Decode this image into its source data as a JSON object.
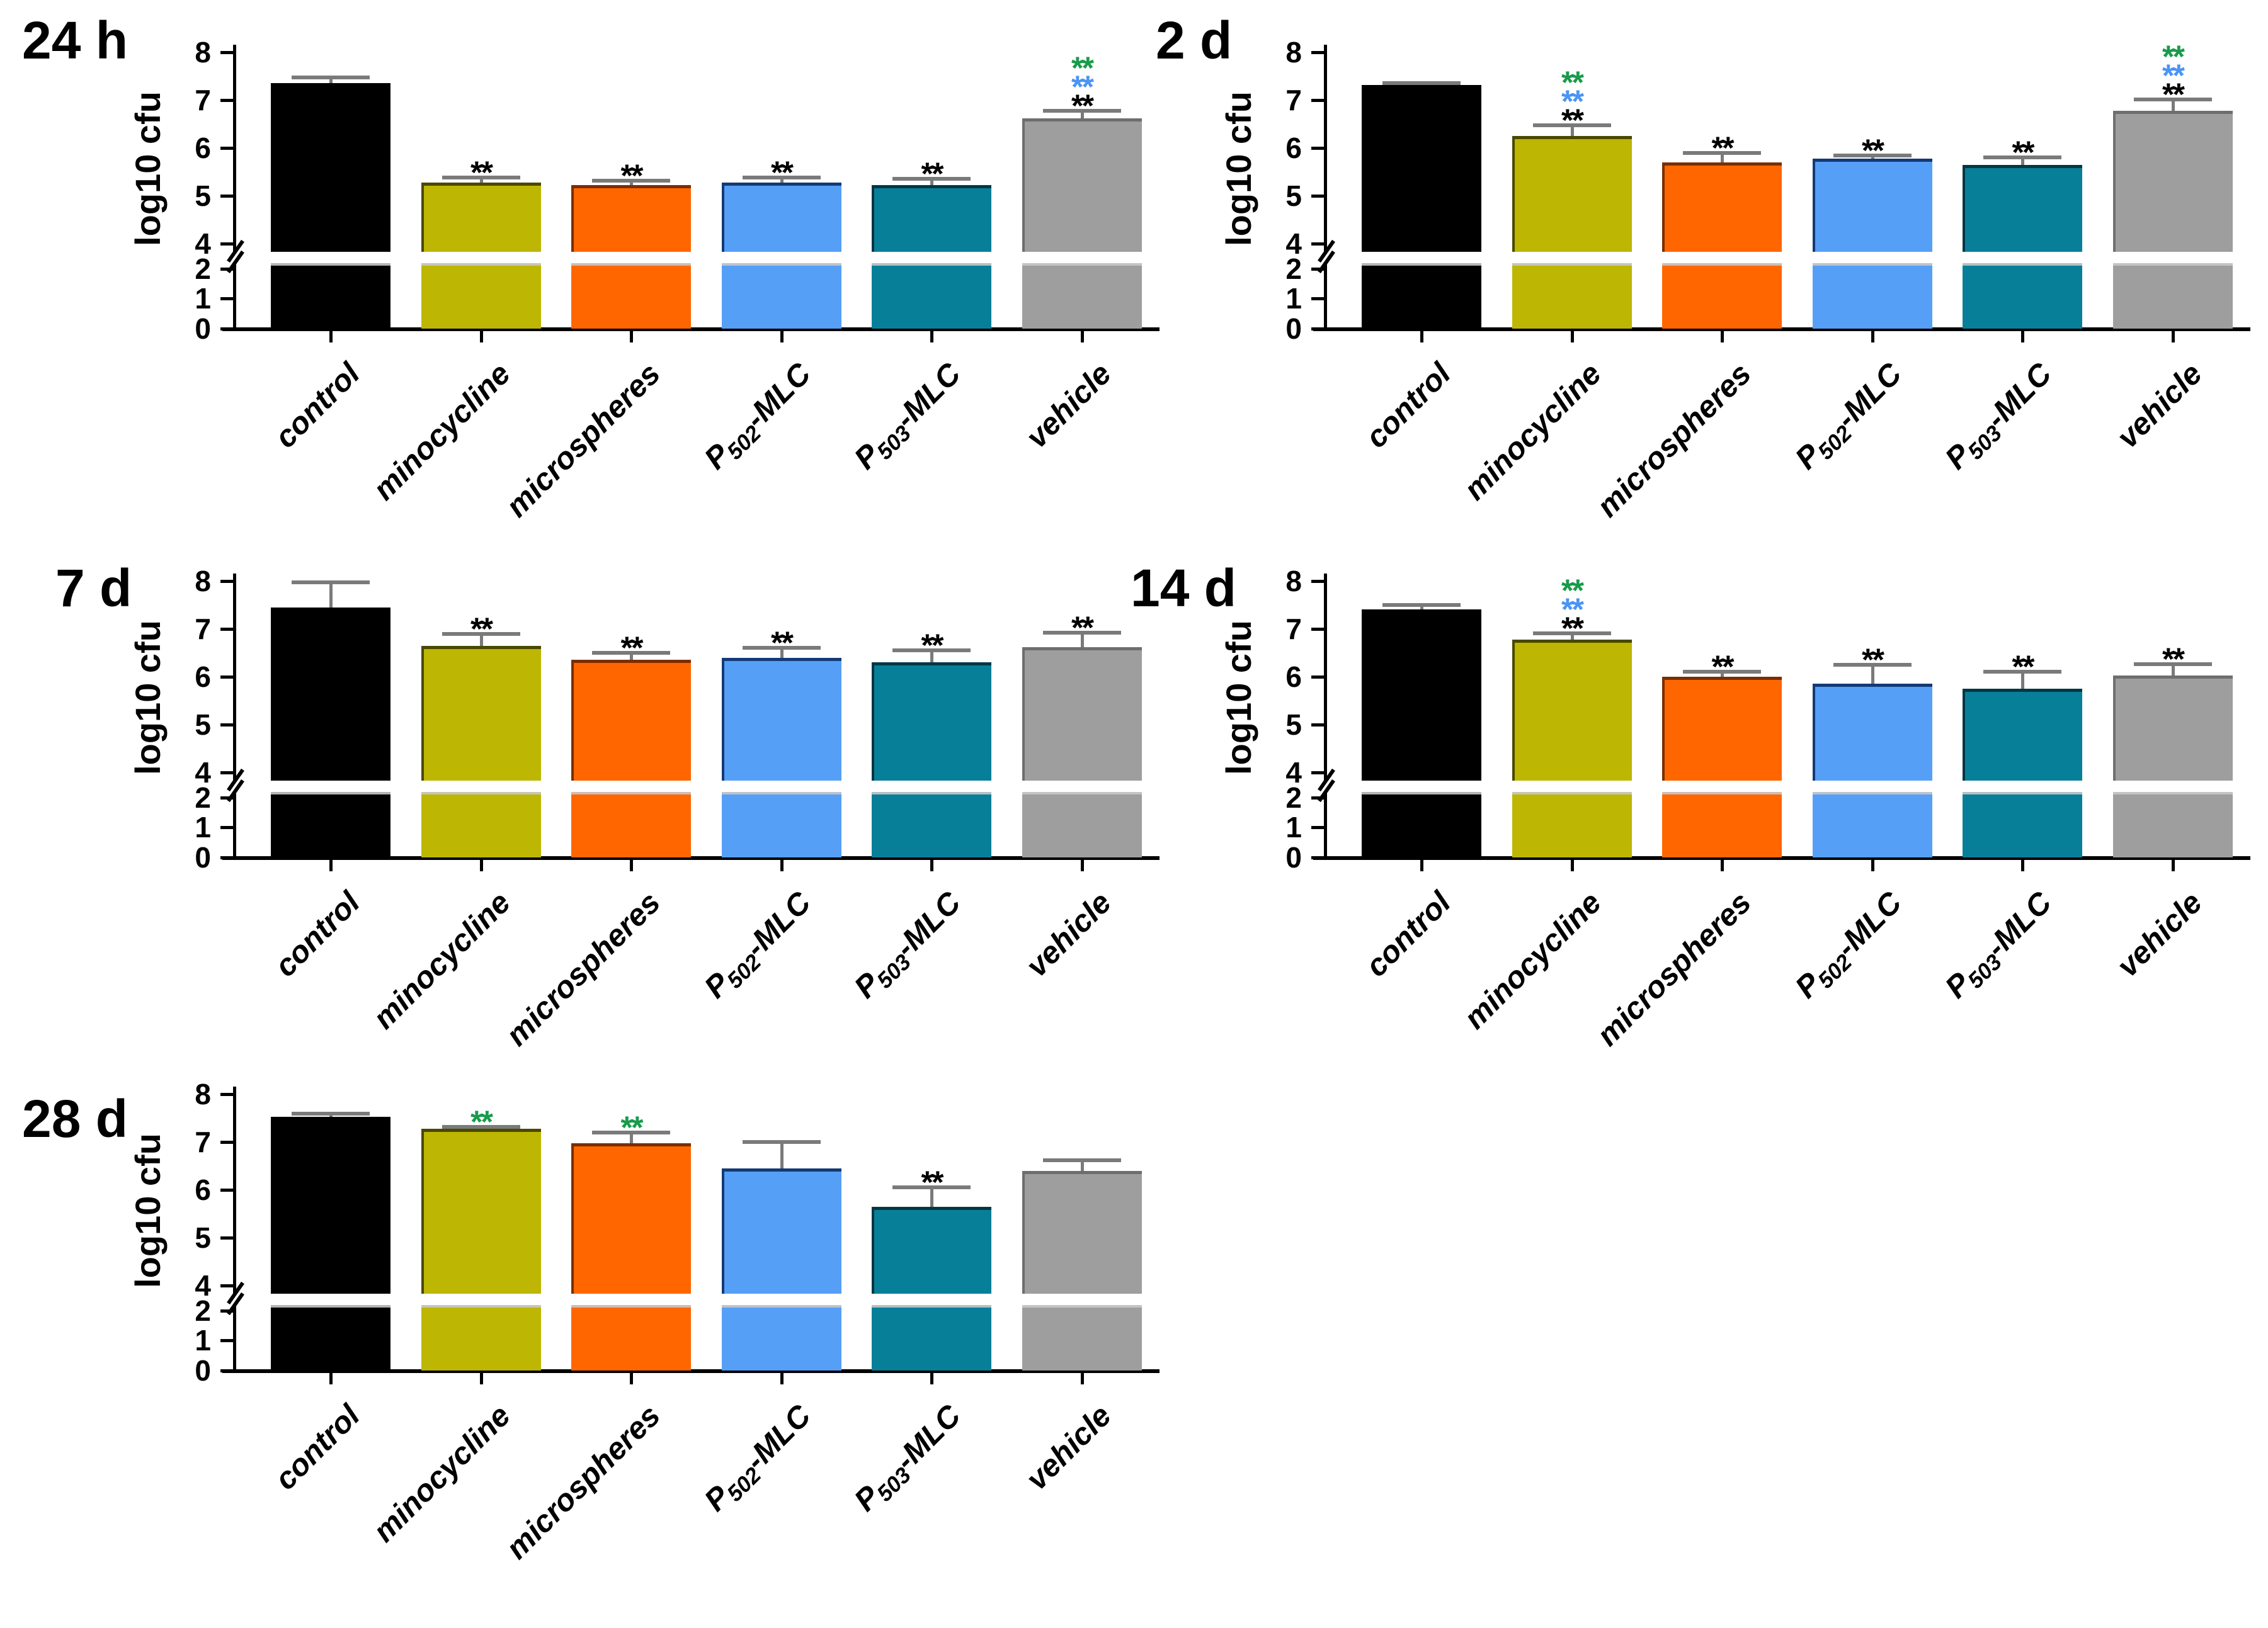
{
  "figure": {
    "background": "#ffffff",
    "y_axis_label": "log10 cfu",
    "significance_symbol": "**",
    "panel_titles": [
      "24 h",
      "2 d",
      "7 d",
      "14 d",
      "28 d"
    ]
  },
  "colors": {
    "bars": {
      "black": "#000000",
      "olive": "#BDB602",
      "orange": "#FF6600",
      "blue": "#569FF7",
      "teal": "#087F99",
      "gray": "#9E9E9E"
    },
    "bar_edges": {
      "black": "#000000",
      "olive": "#4A4800",
      "orange": "#7A2E00",
      "blue": "#123A75",
      "teal": "#033744",
      "gray": "#6E6E6E"
    },
    "significance": {
      "black": "#000000",
      "blue": "#4A94F5",
      "green": "#189B4A"
    },
    "error_bar": "#7A7A7A",
    "axis": "#000000"
  },
  "groups": [
    {
      "key": "black",
      "label": "control"
    },
    {
      "key": "olive",
      "label": "minocycline"
    },
    {
      "key": "orange",
      "label": "microspheres"
    },
    {
      "key": "blue",
      "label": "P502-MLC",
      "pre": "P",
      "sub": "502",
      "post": "-MLC"
    },
    {
      "key": "teal",
      "label": "P503-MLC",
      "pre": "P",
      "sub": "503",
      "post": "-MLC"
    },
    {
      "key": "gray",
      "label": "vehicle"
    }
  ],
  "chart_data": [
    {
      "type": "bar",
      "title": "24 h",
      "ylabel": "log10 cfu",
      "ylim": [
        0,
        8
      ],
      "axis_break": {
        "lower_max": 2,
        "upper_min": 4
      },
      "yticks_upper": [
        4,
        5,
        6,
        7,
        8
      ],
      "yticks_lower": [
        0,
        1,
        2
      ],
      "categories": [
        "control",
        "minocycline",
        "microspheres",
        "P502-MLC",
        "P503-MLC",
        "vehicle"
      ],
      "values": [
        7.35,
        5.28,
        5.22,
        5.28,
        5.22,
        6.62
      ],
      "errors": [
        0.12,
        0.1,
        0.1,
        0.1,
        0.14,
        0.16
      ],
      "significance_top_to_bottom": [
        [],
        [
          "black"
        ],
        [
          "black"
        ],
        [
          "black"
        ],
        [
          "black"
        ],
        [
          "green",
          "blue",
          "black"
        ]
      ]
    },
    {
      "type": "bar",
      "title": "2 d",
      "ylabel": "log10 cfu",
      "ylim": [
        0,
        8
      ],
      "axis_break": {
        "lower_max": 2,
        "upper_min": 4
      },
      "yticks_upper": [
        4,
        5,
        6,
        7,
        8
      ],
      "yticks_lower": [
        0,
        1,
        2
      ],
      "categories": [
        "control",
        "minocycline",
        "microspheres",
        "P502-MLC",
        "P503-MLC",
        "vehicle"
      ],
      "values": [
        7.32,
        6.25,
        5.7,
        5.77,
        5.65,
        6.77
      ],
      "errors": [
        0.04,
        0.22,
        0.2,
        0.07,
        0.15,
        0.24
      ],
      "significance_top_to_bottom": [
        [],
        [
          "green",
          "blue",
          "black"
        ],
        [
          "black"
        ],
        [
          "black"
        ],
        [
          "black"
        ],
        [
          "green",
          "blue",
          "black"
        ]
      ]
    },
    {
      "type": "bar",
      "title": "7 d",
      "ylabel": "log10 cfu",
      "ylim": [
        0,
        8
      ],
      "axis_break": {
        "lower_max": 2,
        "upper_min": 4
      },
      "yticks_upper": [
        4,
        5,
        6,
        7,
        8
      ],
      "yticks_lower": [
        0,
        1,
        2
      ],
      "categories": [
        "control",
        "minocycline",
        "microspheres",
        "P502-MLC",
        "P503-MLC",
        "vehicle"
      ],
      "values": [
        7.45,
        6.65,
        6.35,
        6.4,
        6.3,
        6.62
      ],
      "errors": [
        0.52,
        0.24,
        0.15,
        0.2,
        0.25,
        0.3
      ],
      "significance_top_to_bottom": [
        [],
        [
          "black"
        ],
        [
          "black"
        ],
        [
          "black"
        ],
        [
          "black"
        ],
        [
          "black"
        ]
      ]
    },
    {
      "type": "bar",
      "title": "14 d",
      "ylabel": "log10 cfu",
      "ylim": [
        0,
        8
      ],
      "axis_break": {
        "lower_max": 2,
        "upper_min": 4
      },
      "yticks_upper": [
        4,
        5,
        6,
        7,
        8
      ],
      "yticks_lower": [
        0,
        1,
        2
      ],
      "categories": [
        "control",
        "minocycline",
        "microspheres",
        "P502-MLC",
        "P503-MLC",
        "vehicle"
      ],
      "values": [
        7.41,
        6.78,
        6.0,
        5.85,
        5.75,
        6.02
      ],
      "errors": [
        0.09,
        0.13,
        0.1,
        0.4,
        0.35,
        0.24
      ],
      "significance_top_to_bottom": [
        [],
        [
          "green",
          "blue",
          "black"
        ],
        [
          "black"
        ],
        [
          "black"
        ],
        [
          "black"
        ],
        [
          "black"
        ]
      ]
    },
    {
      "type": "bar",
      "title": "28 d",
      "ylabel": "log10 cfu",
      "ylim": [
        0,
        8
      ],
      "axis_break": {
        "lower_max": 2,
        "upper_min": 4
      },
      "yticks_upper": [
        4,
        5,
        6,
        7,
        8
      ],
      "yticks_lower": [
        0,
        1,
        2
      ],
      "categories": [
        "control",
        "minocycline",
        "microspheres",
        "P502-MLC",
        "P503-MLC",
        "vehicle"
      ],
      "values": [
        7.52,
        7.27,
        6.98,
        6.45,
        5.65,
        6.4
      ],
      "errors": [
        0.07,
        0.04,
        0.22,
        0.55,
        0.4,
        0.22
      ],
      "significance_top_to_bottom": [
        [],
        [
          "green"
        ],
        [
          "green"
        ],
        [],
        [
          "black"
        ],
        []
      ]
    }
  ]
}
